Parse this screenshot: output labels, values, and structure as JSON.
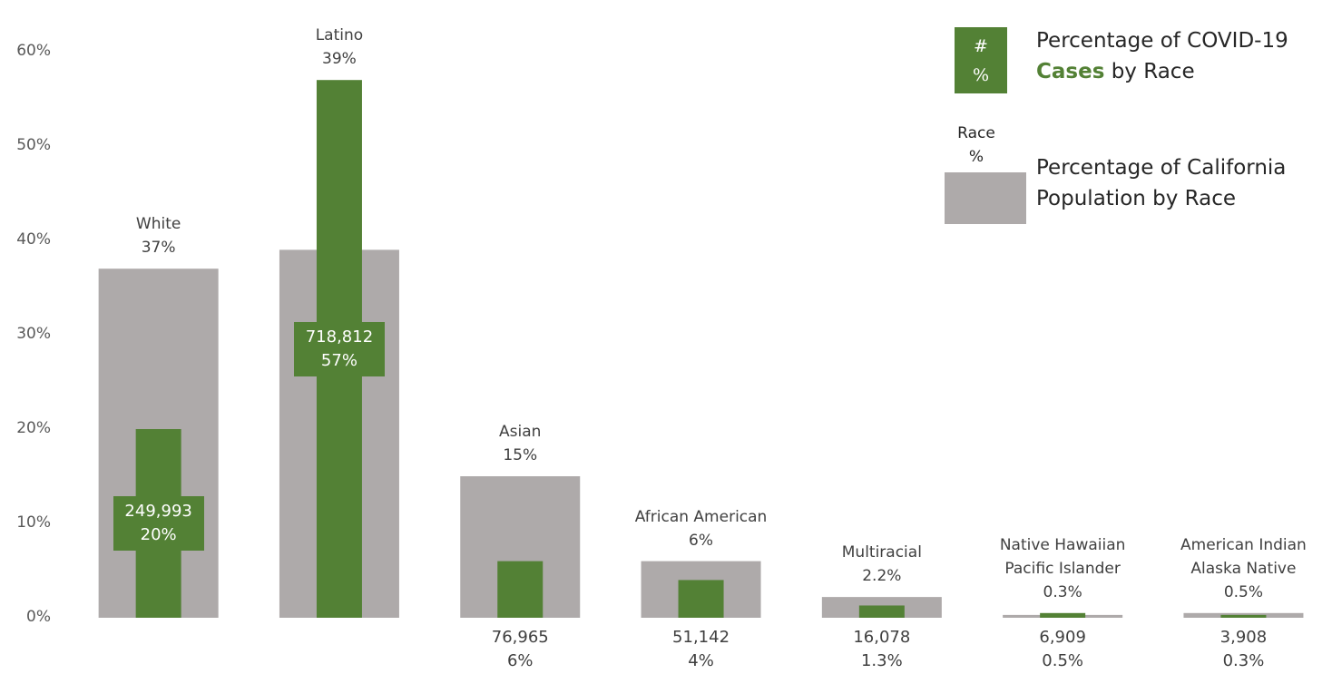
{
  "chart_data": {
    "type": "bar",
    "categories": [
      "White",
      "Latino",
      "Asian",
      "African American",
      "Multiracial",
      "Native Hawaiian\nPacific Islander",
      "American Indian\nAlaska Native"
    ],
    "series": [
      {
        "name": "Percentage of COVID-19 Cases by Race",
        "highlight": "Cases",
        "color": "#538135",
        "values": [
          20,
          57,
          6,
          4,
          1.3,
          0.5,
          0.3
        ],
        "value_labels": [
          "20%",
          "57%",
          "6%",
          "4%",
          "1.3%",
          "0.5%",
          "0.3%"
        ],
        "count_labels": [
          "249,993",
          "718,812",
          "76,965",
          "51,142",
          "16,078",
          "6,909",
          "3,908"
        ],
        "legend_box": [
          "#",
          "%"
        ]
      },
      {
        "name": "Percentage of California Population by Race",
        "color": "#aeaaaa",
        "values": [
          37,
          39,
          15,
          6,
          2.2,
          0.3,
          0.5
        ],
        "value_labels": [
          "37%",
          "39%",
          "15%",
          "6%",
          "2.2%",
          "0.3%",
          "0.5%"
        ],
        "legend_box": [
          "Race",
          "%"
        ]
      }
    ],
    "ylim": [
      0,
      60
    ],
    "yticks": [
      {
        "value": 0,
        "label": "0%"
      },
      {
        "value": 10,
        "label": "10%"
      },
      {
        "value": 20,
        "label": "20%"
      },
      {
        "value": 30,
        "label": "30%"
      },
      {
        "value": 40,
        "label": "40%"
      },
      {
        "value": 50,
        "label": "50%"
      },
      {
        "value": 60,
        "label": "60%"
      }
    ],
    "grid": false
  }
}
